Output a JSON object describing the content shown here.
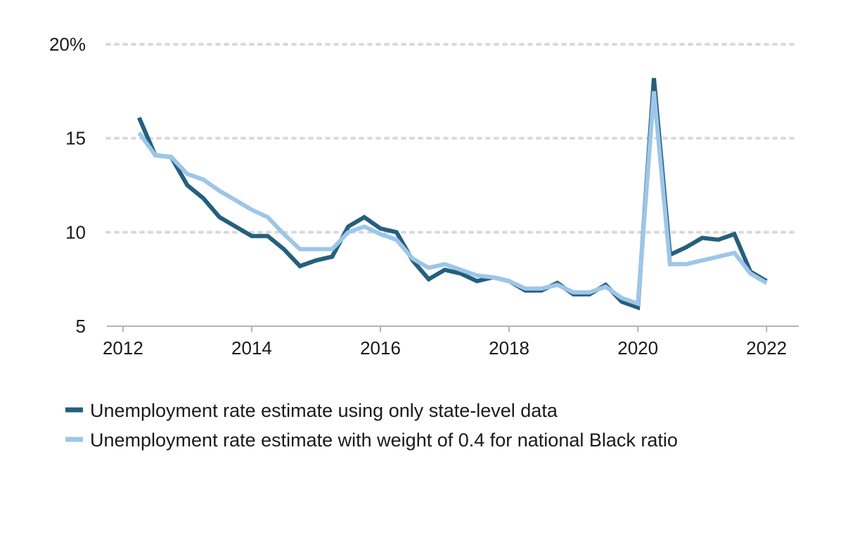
{
  "chart_data": {
    "type": "line",
    "title": "",
    "xlabel": "",
    "ylabel": "",
    "xlim": [
      2011.75,
      2022.5
    ],
    "ylim": [
      5,
      20
    ],
    "x_ticks": [
      2012,
      2014,
      2016,
      2018,
      2020,
      2022
    ],
    "x_tick_labels": [
      "2012",
      "2014",
      "2016",
      "2018",
      "2020",
      "2022"
    ],
    "y_ticks": [
      5,
      10,
      15,
      20
    ],
    "y_tick_labels": [
      "5",
      "10",
      "15",
      "20%"
    ],
    "grid": "horizontal dotted",
    "legend_position": "bottom-left",
    "x": [
      2012.25,
      2012.5,
      2012.75,
      2013.0,
      2013.25,
      2013.5,
      2013.75,
      2014.0,
      2014.25,
      2014.5,
      2014.75,
      2015.0,
      2015.25,
      2015.5,
      2015.75,
      2016.0,
      2016.25,
      2016.5,
      2016.75,
      2017.0,
      2017.25,
      2017.5,
      2017.75,
      2018.0,
      2018.25,
      2018.5,
      2018.75,
      2019.0,
      2019.25,
      2019.5,
      2019.75,
      2020.0,
      2020.25,
      2020.5,
      2020.75,
      2021.0,
      2021.25,
      2021.5,
      2021.75,
      2022.0
    ],
    "series": [
      {
        "name": "Unemployment rate estimate using only state-level data",
        "color": "#255f7e",
        "values": [
          16.1,
          14.1,
          14.0,
          12.5,
          11.8,
          10.8,
          10.3,
          9.8,
          9.8,
          9.1,
          8.2,
          8.5,
          8.7,
          10.3,
          10.8,
          10.2,
          10.0,
          8.5,
          7.5,
          8.0,
          7.8,
          7.4,
          7.6,
          7.4,
          6.9,
          6.9,
          7.3,
          6.7,
          6.7,
          7.2,
          6.3,
          6.0,
          18.2,
          8.8,
          9.2,
          9.7,
          9.6,
          9.9,
          7.9,
          7.4
        ]
      },
      {
        "name": "Unemployment rate estimate with weight of 0.4 for national Black ratio",
        "color": "#9dc6e8",
        "values": [
          15.3,
          14.1,
          14.0,
          13.1,
          12.8,
          12.2,
          11.7,
          11.2,
          10.8,
          9.9,
          9.1,
          9.1,
          9.1,
          10.0,
          10.3,
          9.9,
          9.6,
          8.6,
          8.1,
          8.3,
          8.0,
          7.7,
          7.6,
          7.4,
          7.0,
          7.0,
          7.2,
          6.8,
          6.8,
          7.1,
          6.5,
          6.2,
          17.5,
          8.3,
          8.3,
          8.5,
          8.7,
          8.9,
          7.8,
          7.3
        ]
      }
    ]
  }
}
